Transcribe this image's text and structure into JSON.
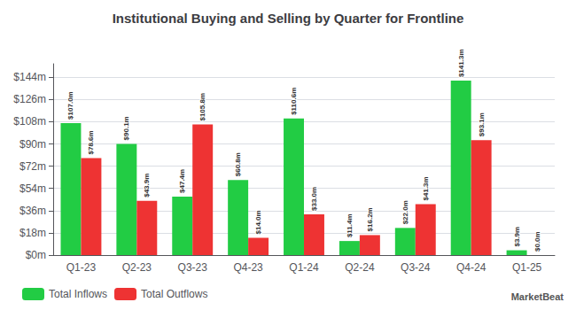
{
  "chart_data": {
    "type": "bar",
    "title": "Institutional Buying and Selling by Quarter for Frontline",
    "categories": [
      "Q1-23",
      "Q2-23",
      "Q3-23",
      "Q4-23",
      "Q1-24",
      "Q2-24",
      "Q3-24",
      "Q4-24",
      "Q1-25"
    ],
    "series": [
      {
        "name": "Total Inflows",
        "color": "#22cc44",
        "values": [
          107.0,
          90.1,
          47.4,
          60.8,
          110.6,
          11.4,
          22.0,
          141.3,
          3.9
        ],
        "value_labels": [
          "$107.0m",
          "$90.1m",
          "$47.4m",
          "$60.8m",
          "$110.6m",
          "$11.4m",
          "$22.0m",
          "$141.3m",
          "$3.9m"
        ]
      },
      {
        "name": "Total Outflows",
        "color": "#ee3333",
        "values": [
          78.6,
          43.9,
          105.8,
          14.0,
          33.0,
          16.2,
          41.3,
          93.1,
          0.0
        ],
        "value_labels": [
          "$78.6m",
          "$43.9m",
          "$105.8m",
          "$14.0m",
          "$33.0m",
          "$16.2m",
          "$41.3m",
          "$93.1m",
          "$0.0m"
        ]
      }
    ],
    "ylim": [
      0,
      155
    ],
    "yticks": [
      {
        "value": 0,
        "label": "$0m"
      },
      {
        "value": 18,
        "label": "$18m"
      },
      {
        "value": 36,
        "label": "$36m"
      },
      {
        "value": 54,
        "label": "$54m"
      },
      {
        "value": 72,
        "label": "$72m"
      },
      {
        "value": 90,
        "label": "$90m"
      },
      {
        "value": 108,
        "label": "$108m"
      },
      {
        "value": 126,
        "label": "$126m"
      },
      {
        "value": 144,
        "label": "$144m"
      }
    ],
    "grid": true,
    "legend": "bottom left",
    "data_labels": true,
    "annotations": [
      "MarketBeat"
    ]
  }
}
